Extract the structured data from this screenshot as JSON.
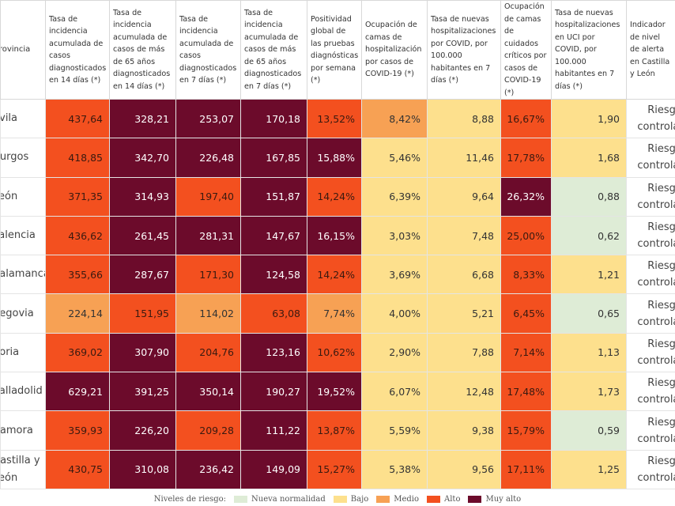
{
  "header": {
    "columns": [
      "Provincia",
      "Tasa de incidencia acumulada de casos diagnosticados en 14 días (*)",
      "Tasa de incidencia acumulada de casos de más de 65 años diagnosticados en 14 días (*)",
      "Tasa de incidencia acumulada de casos diagnosticados en 7 días (*)",
      "Tasa de incidencia acumulada de casos de más de 65 años diagnosticados en 7 días (*)",
      "Positividad global de las pruebas diagnósticas por semana (*)",
      "Ocupación de camas de hospitalización por casos de COVID-19 (*)",
      "Tasa de nuevas hospitalizaciones por COVID, por 100.000 habitantes en 7 días (*)",
      "Ocupación de camas de cuidados críticos por casos de COVID-19 (*)",
      "Tasa de nuevas hospitalizaciones en UCI por COVID, por 100.000 habitantes en 7 días (*)",
      "Indicador de nivel de alerta en Castilla y León"
    ]
  },
  "table": {
    "rows": [
      {
        "cells": [
          "Ávila",
          "437,64",
          "328,21",
          "253,07",
          "170,18",
          "13,52%",
          "8,42%",
          "8,88",
          "16,67%",
          "1,90",
          "Riesgo controlado"
        ],
        "levels": [
          3,
          4,
          4,
          4,
          3,
          2,
          1,
          3,
          1
        ]
      },
      {
        "cells": [
          "Burgos",
          "418,85",
          "342,70",
          "226,48",
          "167,85",
          "15,88%",
          "5,46%",
          "11,46",
          "17,78%",
          "1,68",
          "Riesgo controlado"
        ],
        "levels": [
          3,
          4,
          4,
          4,
          4,
          1,
          1,
          3,
          1
        ]
      },
      {
        "cells": [
          "León",
          "371,35",
          "314,93",
          "197,40",
          "151,87",
          "14,24%",
          "6,39%",
          "9,64",
          "26,32%",
          "0,88",
          "Riesgo controlado"
        ],
        "levels": [
          3,
          4,
          3,
          4,
          3,
          1,
          1,
          4,
          0
        ]
      },
      {
        "cells": [
          "Palencia",
          "436,62",
          "261,45",
          "281,31",
          "147,67",
          "16,15%",
          "3,03%",
          "7,48",
          "25,00%",
          "0,62",
          "Riesgo controlado"
        ],
        "levels": [
          3,
          4,
          4,
          4,
          4,
          1,
          1,
          3,
          0
        ]
      },
      {
        "cells": [
          "Salamanca",
          "355,66",
          "287,67",
          "171,30",
          "124,58",
          "14,24%",
          "3,69%",
          "6,68",
          "8,33%",
          "1,21",
          "Riesgo controlado"
        ],
        "levels": [
          3,
          4,
          3,
          4,
          3,
          1,
          1,
          3,
          1
        ]
      },
      {
        "cells": [
          "Segovia",
          "224,14",
          "151,95",
          "114,02",
          "63,08",
          "7,74%",
          "4,00%",
          "5,21",
          "6,45%",
          "0,65",
          "Riesgo controlado"
        ],
        "levels": [
          2,
          3,
          2,
          3,
          2,
          1,
          1,
          3,
          0
        ]
      },
      {
        "cells": [
          "Soria",
          "369,02",
          "307,90",
          "204,76",
          "123,16",
          "10,62%",
          "2,90%",
          "7,88",
          "7,14%",
          "1,13",
          "Riesgo controlado"
        ],
        "levels": [
          3,
          4,
          3,
          4,
          3,
          1,
          1,
          3,
          1
        ]
      },
      {
        "cells": [
          "Valladolid",
          "629,21",
          "391,25",
          "350,14",
          "190,27",
          "19,52%",
          "6,07%",
          "12,48",
          "17,48%",
          "1,73",
          "Riesgo controlado"
        ],
        "levels": [
          4,
          4,
          4,
          4,
          4,
          1,
          1,
          3,
          1
        ]
      },
      {
        "cells": [
          "Zamora",
          "359,93",
          "226,20",
          "209,28",
          "111,22",
          "13,87%",
          "5,59%",
          "9,38",
          "15,79%",
          "0,59",
          "Riesgo controlado"
        ],
        "levels": [
          3,
          4,
          3,
          4,
          3,
          1,
          1,
          3,
          0
        ]
      },
      {
        "cells": [
          "Castilla y León",
          "430,75",
          "310,08",
          "236,42",
          "149,09",
          "15,27%",
          "5,38%",
          "9,56",
          "17,11%",
          "1,25",
          "Riesgo controlado"
        ],
        "levels": [
          3,
          4,
          4,
          4,
          3,
          1,
          1,
          3,
          1
        ]
      }
    ]
  },
  "legend": {
    "title": "Niveles de riesgo:",
    "items": [
      {
        "label": "Nueva normalidad",
        "color": "#deecd6",
        "text": "#333333"
      },
      {
        "label": "Bajo",
        "color": "#fde08d",
        "text": "#333333"
      },
      {
        "label": "Medio",
        "color": "#f7a154",
        "text": "#333333"
      },
      {
        "label": "Alto",
        "color": "#f3501f",
        "text": "#3a1a10"
      },
      {
        "label": "Muy alto",
        "color": "#6c0b2b",
        "text": "#ffffff"
      }
    ]
  }
}
